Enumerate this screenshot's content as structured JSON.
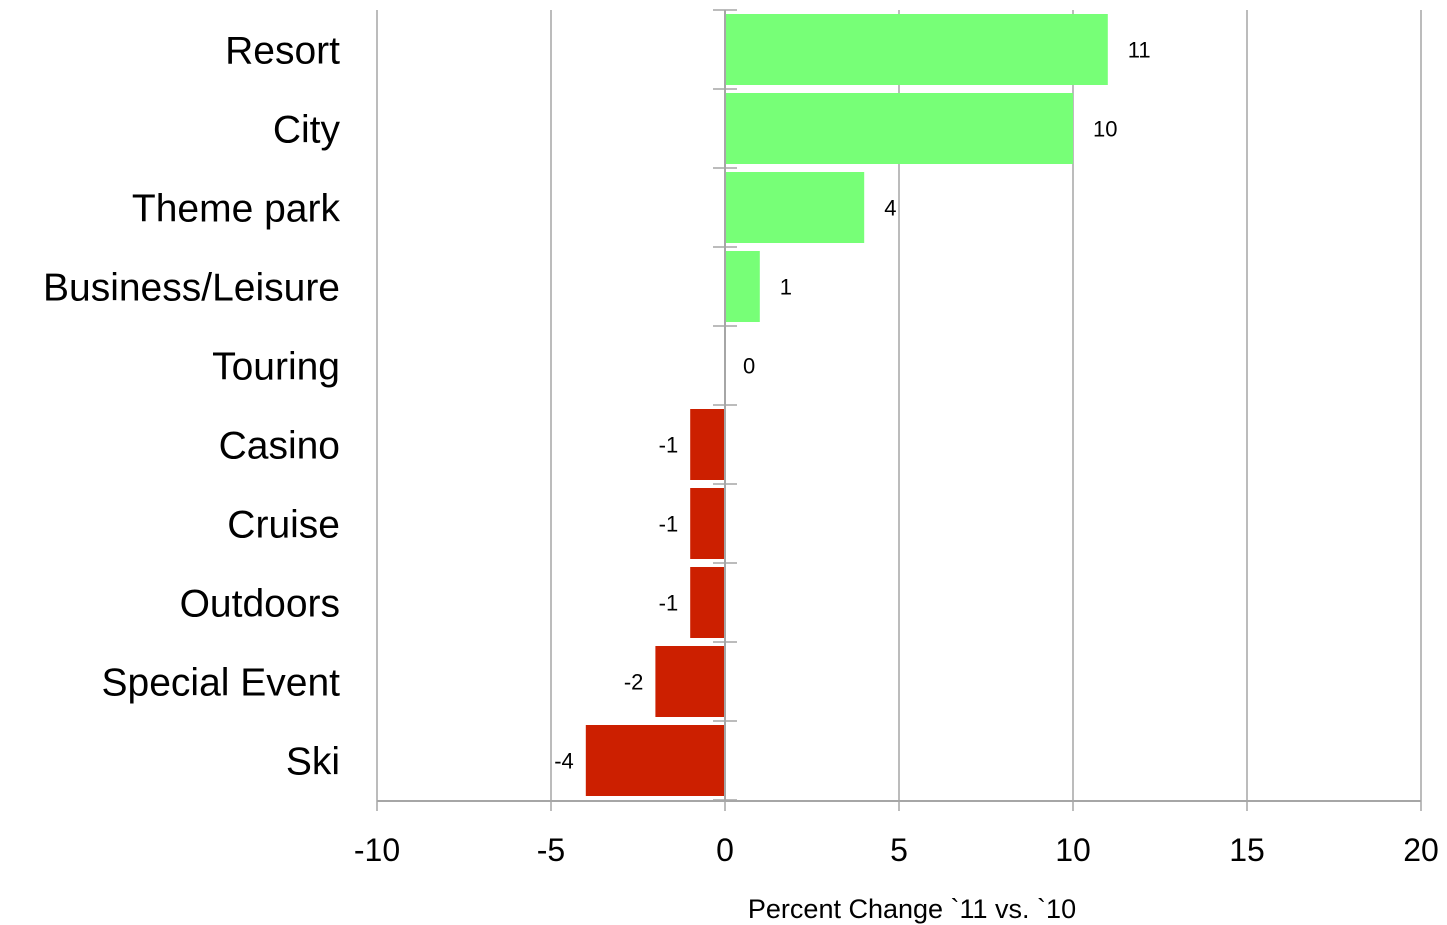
{
  "chart_data": {
    "type": "bar",
    "orientation": "horizontal",
    "categories": [
      "Resort",
      "City",
      "Theme park",
      "Business/Leisure",
      "Touring",
      "Casino",
      "Cruise",
      "Outdoors",
      "Special Event",
      "Ski"
    ],
    "values": [
      11,
      10,
      4,
      1,
      0,
      -1,
      -1,
      -1,
      -2,
      -4
    ],
    "data_labels": [
      "11",
      "10",
      "4",
      "1",
      "0",
      "-1",
      "-1",
      "-1",
      "-2",
      "-4"
    ],
    "title": "",
    "xlabel": "Percent Change `11 vs. `10",
    "ylabel": "",
    "xlim": [
      -10,
      20
    ],
    "xticks": [
      -10,
      -5,
      0,
      5,
      10,
      15,
      20
    ],
    "xtick_labels": [
      "-10",
      "-5",
      "0",
      "5",
      "10",
      "15",
      "20"
    ],
    "grid": "vertical",
    "legend": "none",
    "colors": {
      "positive": "#77FF77",
      "negative": "#CC1F00",
      "grid": "#A6A6A6",
      "axis": "#A6A6A6"
    }
  }
}
